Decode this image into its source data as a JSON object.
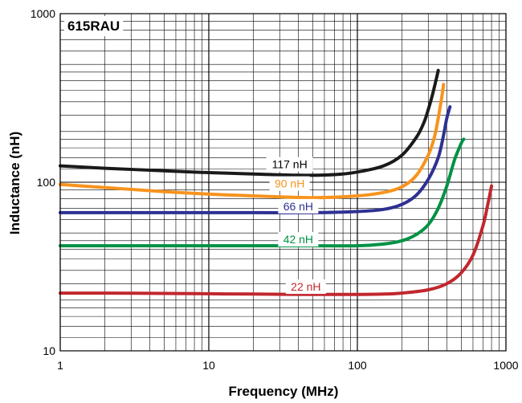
{
  "chart_data": {
    "type": "line",
    "title": "",
    "part_label": "615RAU",
    "xlabel": "Frequency (MHz)",
    "ylabel": "Inductance (nH)",
    "xscale": "log",
    "yscale": "log",
    "xlim": [
      1,
      1000
    ],
    "ylim": [
      10,
      1000
    ],
    "x_ticks": [
      {
        "value": 1,
        "label": "1"
      },
      {
        "value": 10,
        "label": "10"
      },
      {
        "value": 100,
        "label": "100"
      },
      {
        "value": 1000,
        "label": "1000"
      }
    ],
    "y_ticks": [
      {
        "value": 10,
        "label": "10"
      },
      {
        "value": 100,
        "label": "100"
      },
      {
        "value": 1000,
        "label": "1000"
      }
    ],
    "grid": true,
    "legend": "inline labels",
    "series": [
      {
        "name": "117 nH",
        "color": "#1a1a1a",
        "label_at": [
          35,
          117
        ],
        "x": [
          1,
          2,
          5,
          10,
          20,
          40,
          70,
          100,
          150,
          200,
          250,
          280,
          300,
          320,
          340,
          350
        ],
        "y": [
          125,
          121,
          117,
          114,
          112,
          110,
          111,
          115,
          125,
          145,
          185,
          225,
          270,
          330,
          410,
          460
        ]
      },
      {
        "name": "90 nH",
        "color": "#f7931e",
        "label_at": [
          35,
          90
        ],
        "x": [
          1,
          2,
          5,
          10,
          20,
          50,
          100,
          150,
          200,
          250,
          300,
          330,
          350,
          370,
          380
        ],
        "y": [
          97,
          93,
          88,
          85,
          83,
          81,
          83,
          87,
          94,
          110,
          145,
          185,
          240,
          320,
          380
        ]
      },
      {
        "name": "66 nH",
        "color": "#2e3192",
        "label_at": [
          40,
          66
        ],
        "x": [
          1,
          2,
          5,
          10,
          20,
          50,
          100,
          150,
          200,
          250,
          300,
          350,
          380,
          400,
          420
        ],
        "y": [
          66,
          66,
          66,
          66,
          66,
          66,
          67,
          69,
          74,
          84,
          104,
          140,
          190,
          240,
          280
        ]
      },
      {
        "name": "42 nH",
        "color": "#009245",
        "label_at": [
          40,
          42
        ],
        "x": [
          1,
          2,
          5,
          10,
          20,
          50,
          100,
          150,
          200,
          250,
          300,
          350,
          400,
          450,
          500,
          520
        ],
        "y": [
          42,
          42,
          42,
          42,
          42,
          42,
          42,
          43,
          45,
          49,
          56,
          70,
          95,
          135,
          170,
          180
        ]
      },
      {
        "name": "22 nH",
        "color": "#c1272d",
        "label_at": [
          45,
          22
        ],
        "x": [
          1,
          2,
          5,
          10,
          20,
          50,
          100,
          150,
          200,
          300,
          400,
          500,
          600,
          700,
          750,
          800
        ],
        "y": [
          22,
          22,
          21.9,
          21.8,
          21.7,
          21.6,
          21.6,
          21.7,
          22,
          23,
          25,
          29,
          37,
          55,
          72,
          95
        ]
      }
    ]
  }
}
